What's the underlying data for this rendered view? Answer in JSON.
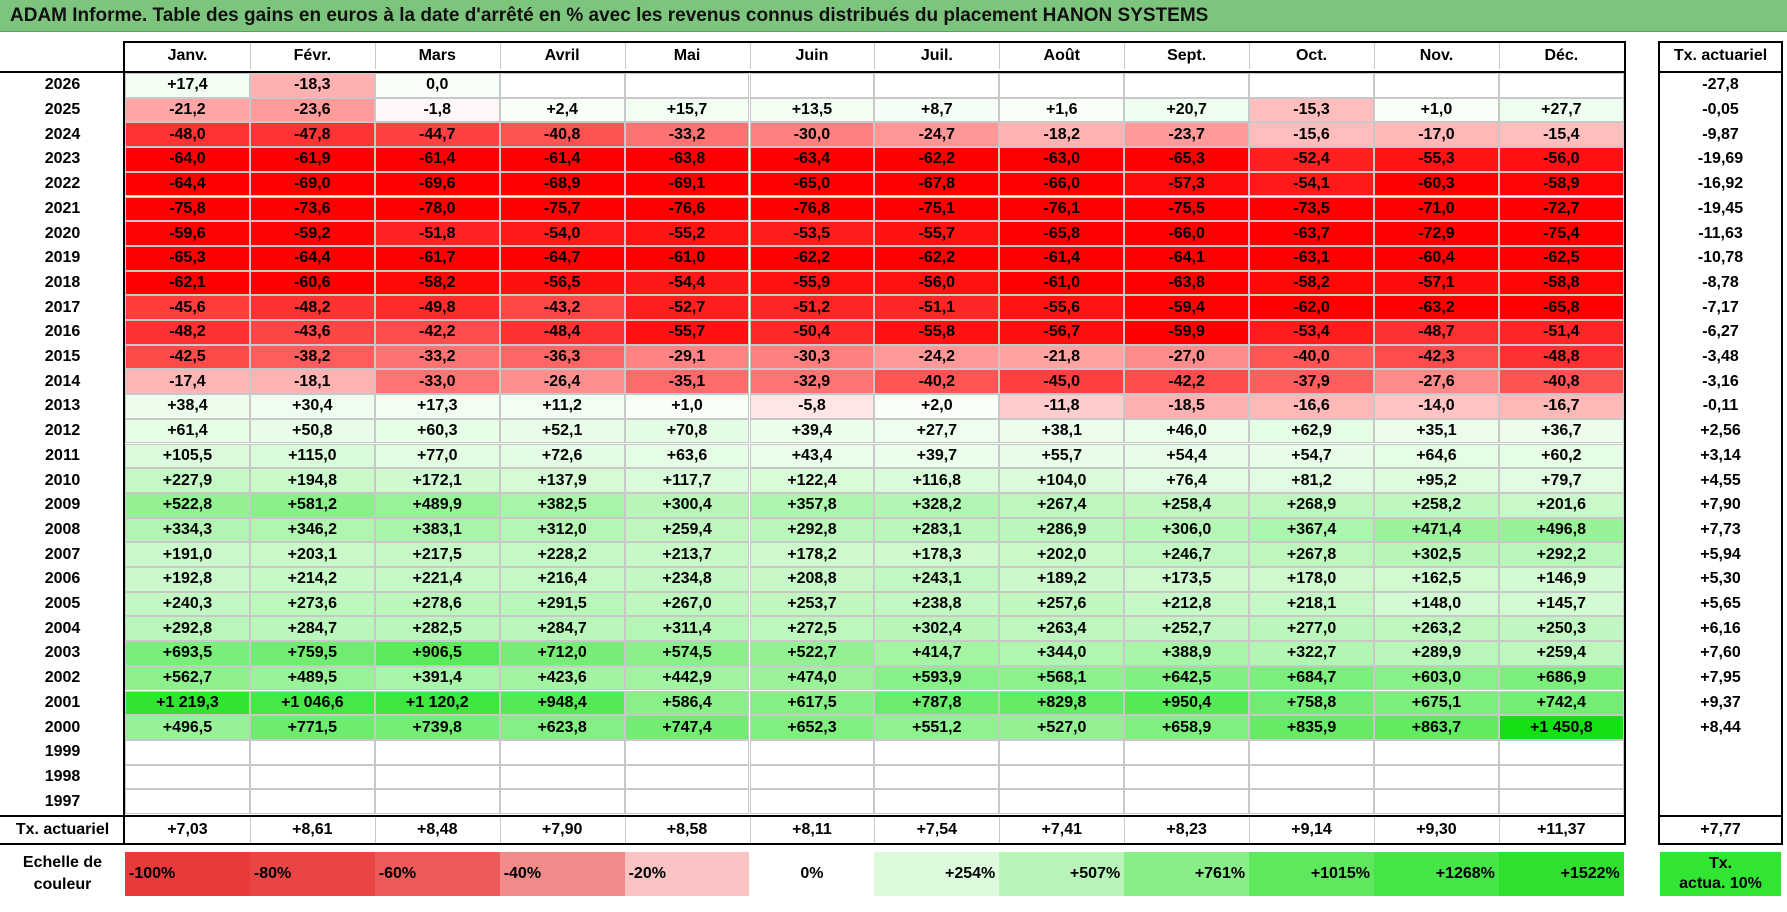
{
  "title": "ADAM Informe. Table des gains en euros à la date d'arrêté en % avec les revenus connus distribués du placement HANON SYSTEMS",
  "chart_data": {
    "type": "table",
    "title": "ADAM Informe. Table des gains en euros à la date d'arrêté en % avec les revenus connus distribués du placement HANON SYSTEMS",
    "columns": [
      "Janv.",
      "Févr.",
      "Mars",
      "Avril",
      "Mai",
      "Juin",
      "Juil.",
      "Août",
      "Sept.",
      "Oct.",
      "Nov.",
      "Déc."
    ],
    "ta_header": "Tx. actuariel",
    "rows": [
      {
        "year": "2026",
        "values": [
          17.4,
          -18.3,
          0.0,
          null,
          null,
          null,
          null,
          null,
          null,
          null,
          null,
          null
        ],
        "labels": [
          "+17,4",
          "-18,3",
          "0,0",
          "",
          "",
          "",
          "",
          "",
          "",
          "",
          "",
          ""
        ],
        "ta": "-27,8"
      },
      {
        "year": "2025",
        "values": [
          -21.2,
          -23.6,
          -1.8,
          2.4,
          15.7,
          13.5,
          8.7,
          1.6,
          20.7,
          -15.3,
          1.0,
          27.7
        ],
        "labels": [
          "-21,2",
          "-23,6",
          "-1,8",
          "+2,4",
          "+15,7",
          "+13,5",
          "+8,7",
          "+1,6",
          "+20,7",
          "-15,3",
          "+1,0",
          "+27,7"
        ],
        "ta": "-0,05"
      },
      {
        "year": "2024",
        "values": [
          -48.0,
          -47.8,
          -44.7,
          -40.8,
          -33.2,
          -30.0,
          -24.7,
          -18.2,
          -23.7,
          -15.6,
          -17.0,
          -15.4
        ],
        "labels": [
          "-48,0",
          "-47,8",
          "-44,7",
          "-40,8",
          "-33,2",
          "-30,0",
          "-24,7",
          "-18,2",
          "-23,7",
          "-15,6",
          "-17,0",
          "-15,4"
        ],
        "ta": "-9,87"
      },
      {
        "year": "2023",
        "values": [
          -64.0,
          -61.9,
          -61.4,
          -61.4,
          -63.8,
          -63.4,
          -62.2,
          -63.0,
          -65.3,
          -52.4,
          -55.3,
          -56.0
        ],
        "labels": [
          "-64,0",
          "-61,9",
          "-61,4",
          "-61,4",
          "-63,8",
          "-63,4",
          "-62,2",
          "-63,0",
          "-65,3",
          "-52,4",
          "-55,3",
          "-56,0"
        ],
        "ta": "-19,69"
      },
      {
        "year": "2022",
        "values": [
          -64.4,
          -69.0,
          -69.6,
          -68.9,
          -69.1,
          -65.0,
          -67.8,
          -66.0,
          -57.3,
          -54.1,
          -60.3,
          -58.9
        ],
        "labels": [
          "-64,4",
          "-69,0",
          "-69,6",
          "-68,9",
          "-69,1",
          "-65,0",
          "-67,8",
          "-66,0",
          "-57,3",
          "-54,1",
          "-60,3",
          "-58,9"
        ],
        "ta": "-16,92"
      },
      {
        "year": "2021",
        "values": [
          -75.8,
          -73.6,
          -78.0,
          -75.7,
          -76.6,
          -76.8,
          -75.1,
          -76.1,
          -75.5,
          -73.5,
          -71.0,
          -72.7
        ],
        "labels": [
          "-75,8",
          "-73,6",
          "-78,0",
          "-75,7",
          "-76,6",
          "-76,8",
          "-75,1",
          "-76,1",
          "-75,5",
          "-73,5",
          "-71,0",
          "-72,7"
        ],
        "ta": "-19,45"
      },
      {
        "year": "2020",
        "values": [
          -59.6,
          -59.2,
          -51.8,
          -54.0,
          -55.2,
          -53.5,
          -55.7,
          -65.8,
          -66.0,
          -63.7,
          -72.9,
          -75.4
        ],
        "labels": [
          "-59,6",
          "-59,2",
          "-51,8",
          "-54,0",
          "-55,2",
          "-53,5",
          "-55,7",
          "-65,8",
          "-66,0",
          "-63,7",
          "-72,9",
          "-75,4"
        ],
        "ta": "-11,63"
      },
      {
        "year": "2019",
        "values": [
          -65.3,
          -64.4,
          -61.7,
          -64.7,
          -61.0,
          -62.2,
          -62.2,
          -61.4,
          -64.1,
          -63.1,
          -60.4,
          -62.5
        ],
        "labels": [
          "-65,3",
          "-64,4",
          "-61,7",
          "-64,7",
          "-61,0",
          "-62,2",
          "-62,2",
          "-61,4",
          "-64,1",
          "-63,1",
          "-60,4",
          "-62,5"
        ],
        "ta": "-10,78"
      },
      {
        "year": "2018",
        "values": [
          -62.1,
          -60.6,
          -58.2,
          -56.5,
          -54.4,
          -55.9,
          -56.0,
          -61.0,
          -63.8,
          -58.2,
          -57.1,
          -58.8
        ],
        "labels": [
          "-62,1",
          "-60,6",
          "-58,2",
          "-56,5",
          "-54,4",
          "-55,9",
          "-56,0",
          "-61,0",
          "-63,8",
          "-58,2",
          "-57,1",
          "-58,8"
        ],
        "ta": "-8,78"
      },
      {
        "year": "2017",
        "values": [
          -45.6,
          -48.2,
          -49.8,
          -43.2,
          -52.7,
          -51.2,
          -51.1,
          -55.6,
          -59.4,
          -62.0,
          -63.2,
          -65.8
        ],
        "labels": [
          "-45,6",
          "-48,2",
          "-49,8",
          "-43,2",
          "-52,7",
          "-51,2",
          "-51,1",
          "-55,6",
          "-59,4",
          "-62,0",
          "-63,2",
          "-65,8"
        ],
        "ta": "-7,17"
      },
      {
        "year": "2016",
        "values": [
          -48.2,
          -43.6,
          -42.2,
          -48.4,
          -55.7,
          -50.4,
          -55.8,
          -56.7,
          -59.9,
          -53.4,
          -48.7,
          -51.4
        ],
        "labels": [
          "-48,2",
          "-43,6",
          "-42,2",
          "-48,4",
          "-55,7",
          "-50,4",
          "-55,8",
          "-56,7",
          "-59,9",
          "-53,4",
          "-48,7",
          "-51,4"
        ],
        "ta": "-6,27"
      },
      {
        "year": "2015",
        "values": [
          -42.5,
          -38.2,
          -33.2,
          -36.3,
          -29.1,
          -30.3,
          -24.2,
          -21.8,
          -27.0,
          -40.0,
          -42.3,
          -48.8
        ],
        "labels": [
          "-42,5",
          "-38,2",
          "-33,2",
          "-36,3",
          "-29,1",
          "-30,3",
          "-24,2",
          "-21,8",
          "-27,0",
          "-40,0",
          "-42,3",
          "-48,8"
        ],
        "ta": "-3,48"
      },
      {
        "year": "2014",
        "values": [
          -17.4,
          -18.1,
          -33.0,
          -26.4,
          -35.1,
          -32.9,
          -40.2,
          -45.0,
          -42.2,
          -37.9,
          -27.6,
          -40.8
        ],
        "labels": [
          "-17,4",
          "-18,1",
          "-33,0",
          "-26,4",
          "-35,1",
          "-32,9",
          "-40,2",
          "-45,0",
          "-42,2",
          "-37,9",
          "-27,6",
          "-40,8"
        ],
        "ta": "-3,16"
      },
      {
        "year": "2013",
        "values": [
          38.4,
          30.4,
          17.3,
          11.2,
          1.0,
          -5.8,
          2.0,
          -11.8,
          -18.5,
          -16.6,
          -14.0,
          -16.7
        ],
        "labels": [
          "+38,4",
          "+30,4",
          "+17,3",
          "+11,2",
          "+1,0",
          "-5,8",
          "+2,0",
          "-11,8",
          "-18,5",
          "-16,6",
          "-14,0",
          "-16,7"
        ],
        "ta": "-0,11"
      },
      {
        "year": "2012",
        "values": [
          61.4,
          50.8,
          60.3,
          52.1,
          70.8,
          39.4,
          27.7,
          38.1,
          46.0,
          62.9,
          35.1,
          36.7
        ],
        "labels": [
          "+61,4",
          "+50,8",
          "+60,3",
          "+52,1",
          "+70,8",
          "+39,4",
          "+27,7",
          "+38,1",
          "+46,0",
          "+62,9",
          "+35,1",
          "+36,7"
        ],
        "ta": "+2,56"
      },
      {
        "year": "2011",
        "values": [
          105.5,
          115.0,
          77.0,
          72.6,
          63.6,
          43.4,
          39.7,
          55.7,
          54.4,
          54.7,
          64.6,
          60.2
        ],
        "labels": [
          "+105,5",
          "+115,0",
          "+77,0",
          "+72,6",
          "+63,6",
          "+43,4",
          "+39,7",
          "+55,7",
          "+54,4",
          "+54,7",
          "+64,6",
          "+60,2"
        ],
        "ta": "+3,14"
      },
      {
        "year": "2010",
        "values": [
          227.9,
          194.8,
          172.1,
          137.9,
          117.7,
          122.4,
          116.8,
          104.0,
          76.4,
          81.2,
          95.2,
          79.7
        ],
        "labels": [
          "+227,9",
          "+194,8",
          "+172,1",
          "+137,9",
          "+117,7",
          "+122,4",
          "+116,8",
          "+104,0",
          "+76,4",
          "+81,2",
          "+95,2",
          "+79,7"
        ],
        "ta": "+4,55"
      },
      {
        "year": "2009",
        "values": [
          522.8,
          581.2,
          489.9,
          382.5,
          300.4,
          357.8,
          328.2,
          267.4,
          258.4,
          268.9,
          258.2,
          201.6
        ],
        "labels": [
          "+522,8",
          "+581,2",
          "+489,9",
          "+382,5",
          "+300,4",
          "+357,8",
          "+328,2",
          "+267,4",
          "+258,4",
          "+268,9",
          "+258,2",
          "+201,6"
        ],
        "ta": "+7,90"
      },
      {
        "year": "2008",
        "values": [
          334.3,
          346.2,
          383.1,
          312.0,
          259.4,
          292.8,
          283.1,
          286.9,
          306.0,
          367.4,
          471.4,
          496.8
        ],
        "labels": [
          "+334,3",
          "+346,2",
          "+383,1",
          "+312,0",
          "+259,4",
          "+292,8",
          "+283,1",
          "+286,9",
          "+306,0",
          "+367,4",
          "+471,4",
          "+496,8"
        ],
        "ta": "+7,73"
      },
      {
        "year": "2007",
        "values": [
          191.0,
          203.1,
          217.5,
          228.2,
          213.7,
          178.2,
          178.3,
          202.0,
          246.7,
          267.8,
          302.5,
          292.2
        ],
        "labels": [
          "+191,0",
          "+203,1",
          "+217,5",
          "+228,2",
          "+213,7",
          "+178,2",
          "+178,3",
          "+202,0",
          "+246,7",
          "+267,8",
          "+302,5",
          "+292,2"
        ],
        "ta": "+5,94"
      },
      {
        "year": "2006",
        "values": [
          192.8,
          214.2,
          221.4,
          216.4,
          234.8,
          208.8,
          243.1,
          189.2,
          173.5,
          178.0,
          162.5,
          146.9
        ],
        "labels": [
          "+192,8",
          "+214,2",
          "+221,4",
          "+216,4",
          "+234,8",
          "+208,8",
          "+243,1",
          "+189,2",
          "+173,5",
          "+178,0",
          "+162,5",
          "+146,9"
        ],
        "ta": "+5,30"
      },
      {
        "year": "2005",
        "values": [
          240.3,
          273.6,
          278.6,
          291.5,
          267.0,
          253.7,
          238.8,
          257.6,
          212.8,
          218.1,
          148.0,
          145.7
        ],
        "labels": [
          "+240,3",
          "+273,6",
          "+278,6",
          "+291,5",
          "+267,0",
          "+253,7",
          "+238,8",
          "+257,6",
          "+212,8",
          "+218,1",
          "+148,0",
          "+145,7"
        ],
        "ta": "+5,65"
      },
      {
        "year": "2004",
        "values": [
          292.8,
          284.7,
          282.5,
          284.7,
          311.4,
          272.5,
          302.4,
          263.4,
          252.7,
          277.0,
          263.2,
          250.3
        ],
        "labels": [
          "+292,8",
          "+284,7",
          "+282,5",
          "+284,7",
          "+311,4",
          "+272,5",
          "+302,4",
          "+263,4",
          "+252,7",
          "+277,0",
          "+263,2",
          "+250,3"
        ],
        "ta": "+6,16"
      },
      {
        "year": "2003",
        "values": [
          693.5,
          759.5,
          906.5,
          712.0,
          574.5,
          522.7,
          414.7,
          344.0,
          388.9,
          322.7,
          289.9,
          259.4
        ],
        "labels": [
          "+693,5",
          "+759,5",
          "+906,5",
          "+712,0",
          "+574,5",
          "+522,7",
          "+414,7",
          "+344,0",
          "+388,9",
          "+322,7",
          "+289,9",
          "+259,4"
        ],
        "ta": "+7,60"
      },
      {
        "year": "2002",
        "values": [
          562.7,
          489.5,
          391.4,
          423.6,
          442.9,
          474.0,
          593.9,
          568.1,
          642.5,
          684.7,
          603.0,
          686.9
        ],
        "labels": [
          "+562,7",
          "+489,5",
          "+391,4",
          "+423,6",
          "+442,9",
          "+474,0",
          "+593,9",
          "+568,1",
          "+642,5",
          "+684,7",
          "+603,0",
          "+686,9"
        ],
        "ta": "+7,95"
      },
      {
        "year": "2001",
        "values": [
          1219.3,
          1046.6,
          1120.2,
          948.4,
          586.4,
          617.5,
          787.8,
          829.8,
          950.4,
          758.8,
          675.1,
          742.4
        ],
        "labels": [
          "+1 219,3",
          "+1 046,6",
          "+1 120,2",
          "+948,4",
          "+586,4",
          "+617,5",
          "+787,8",
          "+829,8",
          "+950,4",
          "+758,8",
          "+675,1",
          "+742,4"
        ],
        "ta": "+9,37"
      },
      {
        "year": "2000",
        "values": [
          496.5,
          771.5,
          739.8,
          623.8,
          747.4,
          652.3,
          551.2,
          527.0,
          658.9,
          835.9,
          863.7,
          1450.8
        ],
        "labels": [
          "+496,5",
          "+771,5",
          "+739,8",
          "+623,8",
          "+747,4",
          "+652,3",
          "+551,2",
          "+527,0",
          "+658,9",
          "+835,9",
          "+863,7",
          "+1 450,8"
        ],
        "ta": "+8,44"
      },
      {
        "year": "1999",
        "values": [
          null,
          null,
          null,
          null,
          null,
          null,
          null,
          null,
          null,
          null,
          null,
          null
        ],
        "labels": [
          "",
          "",
          "",
          "",
          "",
          "",
          "",
          "",
          "",
          "",
          "",
          ""
        ],
        "ta": ""
      },
      {
        "year": "1998",
        "values": [
          null,
          null,
          null,
          null,
          null,
          null,
          null,
          null,
          null,
          null,
          null,
          null
        ],
        "labels": [
          "",
          "",
          "",
          "",
          "",
          "",
          "",
          "",
          "",
          "",
          "",
          ""
        ],
        "ta": ""
      },
      {
        "year": "1997",
        "values": [
          null,
          null,
          null,
          null,
          null,
          null,
          null,
          null,
          null,
          null,
          null,
          null
        ],
        "labels": [
          "",
          "",
          "",
          "",
          "",
          "",
          "",
          "",
          "",
          "",
          "",
          ""
        ],
        "ta": ""
      }
    ],
    "footer": {
      "label": "Tx. actuariel",
      "values": [
        "+7,03",
        "+8,61",
        "+8,48",
        "+7,90",
        "+8,58",
        "+8,11",
        "+7,54",
        "+7,41",
        "+8,23",
        "+9,14",
        "+9,30",
        "+11,37"
      ],
      "ta": "+7,77"
    },
    "scale": {
      "label_line1": "Echelle de",
      "label_line2": "couleur",
      "steps": [
        {
          "label": "-100%",
          "value": -100,
          "color": "#e83a3a"
        },
        {
          "label": "-80%",
          "value": -80,
          "color": "#ea4545"
        },
        {
          "label": "-60%",
          "value": -60,
          "color": "#ee5a5a"
        },
        {
          "label": "-40%",
          "value": -40,
          "color": "#f38a8a"
        },
        {
          "label": "-20%",
          "value": -20,
          "color": "#f9c3c3"
        },
        {
          "label": "0%",
          "value": 0,
          "color": "#ffffff"
        },
        {
          "label": "+254%",
          "value": 254,
          "color": "#ddfadd"
        },
        {
          "label": "+507%",
          "value": 507,
          "color": "#b8f4b8"
        },
        {
          "label": "+761%",
          "value": 761,
          "color": "#88ee88"
        },
        {
          "label": "+1015%",
          "value": 1015,
          "color": "#5ee85e"
        },
        {
          "label": "+1268%",
          "value": 1268,
          "color": "#45e545"
        },
        {
          "label": "+1522%",
          "value": 1522,
          "color": "#2fe02f"
        }
      ],
      "ta_line1": "Tx.",
      "ta_line2": "actua. 10%"
    }
  }
}
